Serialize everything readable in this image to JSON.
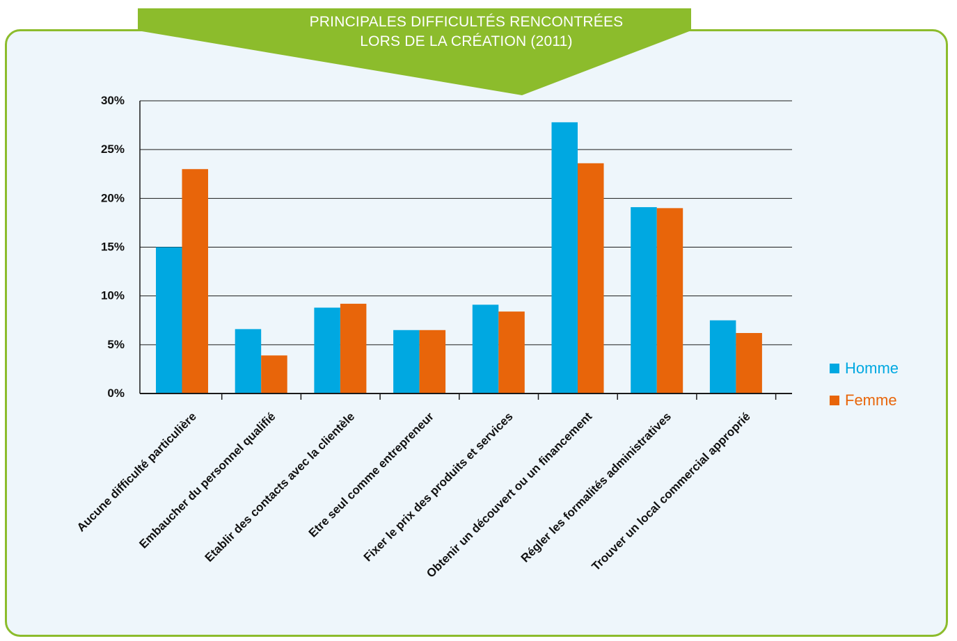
{
  "title": {
    "line1": "PRINCIPALES DIFFICULTÉS RENCONTRÉES",
    "line2": "LORS DE LA CRÉATION (2011)"
  },
  "colors": {
    "homme": "#00a8e1",
    "femme": "#e8650a",
    "frame": "#8cbc2c",
    "banner": "#8cbc2c",
    "banner_dark": "#6f9422"
  },
  "chart_data": {
    "type": "bar",
    "title": "PRINCIPALES DIFFICULTÉS RENCONTRÉES LORS DE LA CRÉATION (2011)",
    "categories": [
      "Aucune difficulté particulière",
      "Embaucher du personnel qualifié",
      "Etablir des contacts avec la clientèle",
      "Etre seul comme entrepreneur",
      "Fixer le prix des produits et services",
      "Obtenir un découvert ou un financement",
      "Régler les formalités administratives",
      "Trouver un local commercial approprié"
    ],
    "series": [
      {
        "name": "Homme",
        "values": [
          15,
          6.6,
          8.8,
          6.5,
          9.1,
          27.8,
          19.1,
          7.5
        ]
      },
      {
        "name": "Femme",
        "values": [
          23,
          3.9,
          9.2,
          6.5,
          8.4,
          23.6,
          19.0,
          6.2
        ]
      }
    ],
    "yticks": [
      "0%",
      "5%",
      "10%",
      "15%",
      "20%",
      "25%",
      "30%"
    ],
    "ylim": [
      0,
      30
    ],
    "grid": true,
    "legend_position": "right"
  }
}
